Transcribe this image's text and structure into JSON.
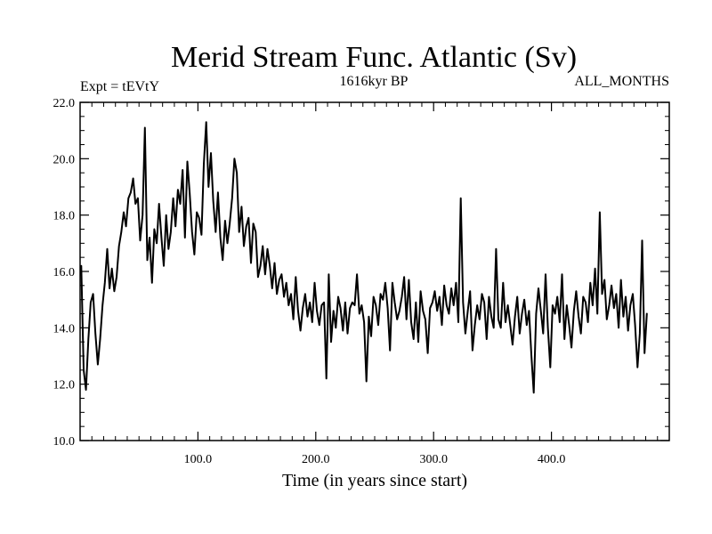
{
  "chart_data": {
    "type": "line",
    "title": "Merid Stream Func. Atlantic (Sv)",
    "left_label": "Expt = tEVtY",
    "center_label": "1616kyr BP",
    "right_label": "ALL_MONTHS",
    "xlabel": "Time (in years since start)",
    "ylabel": "",
    "xlim": [
      0,
      500
    ],
    "ylim": [
      10.0,
      22.0
    ],
    "x_ticks": [
      100,
      200,
      300,
      400
    ],
    "x_tick_labels": [
      "100.0",
      "200.0",
      "300.0",
      "400.0"
    ],
    "y_ticks": [
      10,
      12,
      14,
      16,
      18,
      20,
      22
    ],
    "y_tick_labels": [
      "10.0",
      "12.0",
      "14.0",
      "16.0",
      "18.0",
      "20.0",
      "22.0"
    ],
    "series": [
      {
        "name": "Merid Stream Func. Atlantic",
        "color": "#000000",
        "x_start": 1,
        "x_step": 2,
        "values": [
          16.2,
          12.5,
          11.8,
          13.6,
          14.9,
          15.2,
          13.8,
          12.7,
          13.6,
          14.8,
          15.6,
          16.8,
          15.4,
          16.1,
          15.3,
          15.8,
          16.9,
          17.4,
          18.1,
          17.6,
          18.6,
          18.8,
          19.3,
          18.4,
          18.6,
          17.1,
          18.0,
          21.1,
          16.4,
          17.2,
          15.6,
          17.5,
          17.0,
          18.4,
          17.2,
          16.2,
          18.0,
          16.8,
          17.4,
          18.6,
          17.6,
          18.9,
          18.4,
          19.6,
          17.2,
          19.9,
          18.8,
          17.4,
          16.6,
          18.1,
          17.9,
          17.3,
          19.8,
          21.3,
          19.0,
          20.2,
          18.5,
          17.4,
          18.8,
          17.2,
          16.4,
          17.8,
          17.0,
          17.7,
          18.6,
          20.0,
          19.5,
          17.4,
          18.3,
          16.9,
          17.6,
          17.9,
          16.3,
          17.7,
          17.4,
          15.8,
          16.2,
          16.9,
          15.9,
          16.8,
          16.2,
          15.4,
          16.3,
          15.2,
          15.7,
          15.9,
          15.1,
          15.6,
          14.8,
          15.2,
          14.3,
          15.8,
          14.6,
          13.9,
          14.7,
          15.2,
          14.4,
          14.9,
          14.2,
          15.6,
          14.6,
          14.1,
          14.8,
          14.9,
          12.2,
          15.9,
          13.5,
          14.6,
          14.0,
          15.1,
          14.7,
          13.9,
          14.9,
          13.8,
          14.7,
          14.9,
          14.8,
          15.9,
          14.5,
          14.8,
          14.2,
          12.1,
          14.4,
          13.7,
          15.1,
          14.8,
          14.1,
          15.2,
          15.0,
          15.6,
          14.7,
          13.2,
          15.6,
          14.9,
          14.3,
          14.6,
          15.1,
          15.8,
          14.3,
          15.7,
          14.2,
          13.6,
          14.9,
          13.5,
          15.3,
          14.6,
          14.3,
          13.1,
          14.7,
          14.9,
          15.3,
          14.6,
          15.1,
          14.1,
          15.5,
          14.8,
          14.5,
          15.4,
          14.8,
          15.6,
          14.2,
          18.6,
          14.9,
          13.8,
          14.6,
          15.3,
          13.2,
          14.1,
          14.8,
          14.3,
          15.2,
          14.9,
          13.6,
          15.1,
          14.4,
          14.0,
          16.8,
          14.3,
          14.0,
          15.6,
          14.2,
          14.8,
          14.1,
          13.4,
          14.4,
          15.1,
          13.8,
          14.5,
          15.0,
          14.1,
          14.6,
          13.0,
          11.7,
          14.5,
          15.4,
          14.6,
          13.8,
          15.9,
          14.0,
          12.6,
          14.8,
          14.5,
          15.1,
          14.2,
          15.9,
          13.6,
          14.8,
          14.1,
          13.3,
          14.6,
          15.3,
          14.4,
          13.8,
          15.1,
          14.9,
          14.2,
          15.6,
          14.8,
          16.1,
          14.5,
          18.1,
          15.2,
          15.7,
          14.3,
          14.8,
          15.5,
          14.7,
          15.2,
          14.0,
          15.7,
          14.4,
          15.1,
          13.9,
          14.8,
          15.2,
          14.1,
          12.6,
          13.8,
          17.1,
          13.1,
          14.5
        ]
      }
    ]
  }
}
